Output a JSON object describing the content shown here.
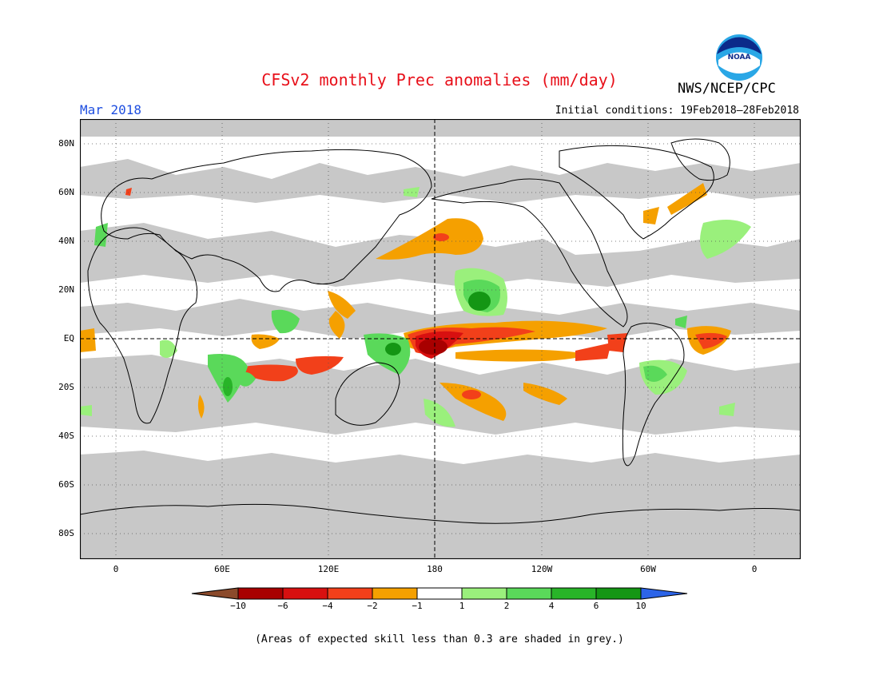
{
  "header": {
    "title": "CFSv2 monthly Prec anomalies (mm/day)",
    "period": "Mar 2018",
    "initial_conditions": "Initial conditions: 19Feb2018–28Feb2018",
    "agency": "NWS/NCEP/CPC",
    "logo_text": "NOAA"
  },
  "map": {
    "lat_labels": [
      "80N",
      "60N",
      "40N",
      "20N",
      "EQ",
      "20S",
      "40S",
      "60S",
      "80S"
    ],
    "lon_labels": [
      "0",
      "60E",
      "120E",
      "180",
      "120W",
      "60W",
      "0"
    ],
    "skill_mask_color": "#c8c8c8",
    "background_color": "#ffffff"
  },
  "legend": {
    "bins": [
      {
        "color": "#8b4a2b"
      },
      {
        "color": "#a80000"
      },
      {
        "color": "#d81010"
      },
      {
        "color": "#f2401a"
      },
      {
        "color": "#f5a000"
      },
      {
        "color": "#ffffff"
      },
      {
        "color": "#9af07c"
      },
      {
        "color": "#5ad95a"
      },
      {
        "color": "#28b428"
      },
      {
        "color": "#149614"
      },
      {
        "color": "#2c64e8"
      }
    ],
    "labels": [
      "−10",
      "−6",
      "−4",
      "−2",
      "−1",
      "1",
      "2",
      "4",
      "6",
      "10"
    ]
  },
  "footnote": "(Areas of expected skill less than 0.3 are shaded in grey.)"
}
